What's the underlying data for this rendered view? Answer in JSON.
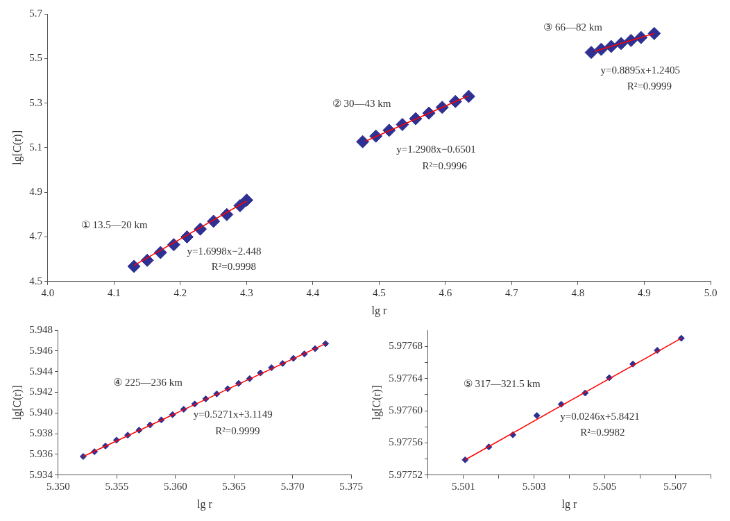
{
  "chart_data": [
    {
      "type": "scatter",
      "xlabel": "lg r",
      "ylabel": "lg[C(r)]",
      "xlim": [
        4.0,
        5.0
      ],
      "xticks": [
        {
          "value": 4.0,
          "label": "4.0"
        },
        4.1,
        4.2,
        4.3,
        4.4,
        4.5,
        4.6,
        4.7,
        4.8,
        4.9,
        {
          "value": 5.0,
          "label": "5.0"
        }
      ],
      "ylim": [
        4.5,
        5.7
      ],
      "yticks": [
        4.5,
        4.7,
        4.9,
        5.1,
        5.3,
        5.5,
        5.7
      ],
      "series": [
        {
          "marker": "diamond",
          "color": "#2e3192",
          "x": [
            4.13,
            4.15,
            4.17,
            4.19,
            4.21,
            4.23,
            4.25,
            4.27,
            4.29,
            4.3
          ],
          "values": [
            4.568,
            4.595,
            4.63,
            4.665,
            4.7,
            4.735,
            4.77,
            4.8,
            4.84,
            4.865
          ]
        },
        {
          "marker": "diamond",
          "color": "#2e3192",
          "x": [
            4.475,
            4.495,
            4.515,
            4.535,
            4.555,
            4.575,
            4.595,
            4.615,
            4.635
          ],
          "values": [
            5.127,
            5.152,
            5.178,
            5.204,
            5.23,
            5.255,
            5.281,
            5.307,
            5.33
          ]
        },
        {
          "marker": "diamond",
          "color": "#2e3192",
          "x": [
            4.82,
            4.835,
            4.85,
            4.865,
            4.88,
            4.895,
            4.915
          ],
          "values": [
            5.527,
            5.541,
            5.554,
            5.567,
            5.581,
            5.594,
            5.612
          ]
        },
        {
          "type": "line",
          "color": "#ff0000",
          "x": [
            4.13,
            4.3
          ],
          "values": [
            4.572,
            4.861
          ]
        },
        {
          "type": "line",
          "color": "#ff0000",
          "x": [
            4.48,
            4.635
          ],
          "values": [
            5.13,
            5.333
          ]
        },
        {
          "type": "line",
          "color": "#ff0000",
          "x": [
            4.825,
            4.915
          ],
          "values": [
            5.532,
            5.612
          ]
        }
      ],
      "annotations": [
        "① 13.5—20 km",
        "y=1.6998x−2.448",
        "R²=0.9998",
        "② 30—43 km",
        "y=1.2908x−0.6501",
        "R²=0.9996",
        "③ 66—82 km",
        "y=0.8895x+1.2405",
        "R²=0.9999"
      ]
    },
    {
      "type": "scatter",
      "xlabel": "lg r",
      "ylabel": "lg[C(r)]",
      "xlim": [
        5.35,
        5.375
      ],
      "xticks": [
        {
          "value": 5.35,
          "label": "5.350"
        },
        5.355,
        {
          "value": 5.36,
          "label": "5.360"
        },
        5.365,
        {
          "value": 5.37,
          "label": "5.370"
        },
        5.375
      ],
      "ylim": [
        5.934,
        5.948
      ],
      "yticks": [
        5.934,
        5.936,
        5.938,
        {
          "value": 5.94,
          "label": "5.940"
        },
        5.942,
        5.944,
        5.946,
        5.948
      ],
      "series": [
        {
          "marker": "diamond",
          "color": "#2e3192",
          "x": [
            5.35213,
            5.35309,
            5.35403,
            5.35497,
            5.35593,
            5.3569,
            5.35784,
            5.3588,
            5.35976,
            5.36071,
            5.36165,
            5.36259,
            5.36353,
            5.36447,
            5.3654,
            5.36634,
            5.36726,
            5.3682,
            5.36915,
            5.37007,
            5.37101,
            5.37193,
            5.37282
          ],
          "values": [
            5.9358,
            5.93626,
            5.93681,
            5.93738,
            5.93786,
            5.93834,
            5.93885,
            5.93933,
            5.93984,
            5.94036,
            5.94087,
            5.94137,
            5.94185,
            5.94234,
            5.94286,
            5.94332,
            5.94387,
            5.94438,
            5.94479,
            5.94528,
            5.94571,
            5.94622,
            5.9467
          ]
        },
        {
          "type": "line",
          "color": "#ff0000",
          "x": [
            5.35213,
            5.37282
          ],
          "values": [
            5.9358,
            5.9467
          ]
        }
      ],
      "annotations": [
        "④ 225—236 km",
        "y=0.5271x+3.1149",
        "R²=0.9999"
      ]
    },
    {
      "type": "scatter",
      "xlabel": "lg r",
      "ylabel": "lg[C(r)]",
      "xlim": [
        5.5,
        5.508
      ],
      "xticks": [
        {
          "value": 5.5,
          "label": null
        },
        5.501,
        {
          "value": 5.502,
          "label": null
        },
        5.503,
        {
          "value": 5.504,
          "label": null
        },
        5.505,
        {
          "value": 5.506,
          "label": null
        },
        5.507,
        {
          "value": 5.508,
          "label": null
        }
      ],
      "ylim": [
        5.97752,
        5.9777
      ],
      "yticks": [
        5.97752,
        {
          "value": 5.97754,
          "label": null
        },
        5.97756,
        {
          "value": 5.97758,
          "label": null
        },
        {
          "value": 5.9776,
          "label": "5.97760"
        },
        {
          "value": 5.97762,
          "label": null
        },
        5.97764,
        {
          "value": 5.97766,
          "label": null
        },
        5.97768
      ],
      "series": [
        {
          "marker": "diamond",
          "color": "#2e3192",
          "x": [
            5.50105,
            5.50172,
            5.5024,
            5.50308,
            5.50377,
            5.50445,
            5.50513,
            5.5058,
            5.50649,
            5.50717
          ],
          "values": [
            5.977539,
            5.977555,
            5.97757,
            5.977594,
            5.977608,
            5.977622,
            5.977641,
            5.977658,
            5.977675,
            5.97769
          ]
        },
        {
          "type": "line",
          "color": "#ff0000",
          "x": [
            5.50105,
            5.50717
          ],
          "values": [
            5.977539,
            5.97769
          ]
        }
      ],
      "annotations": [
        "⑤ 317—321.5 km",
        "y=0.0246x+5.8421",
        "R²=0.9982"
      ]
    }
  ]
}
